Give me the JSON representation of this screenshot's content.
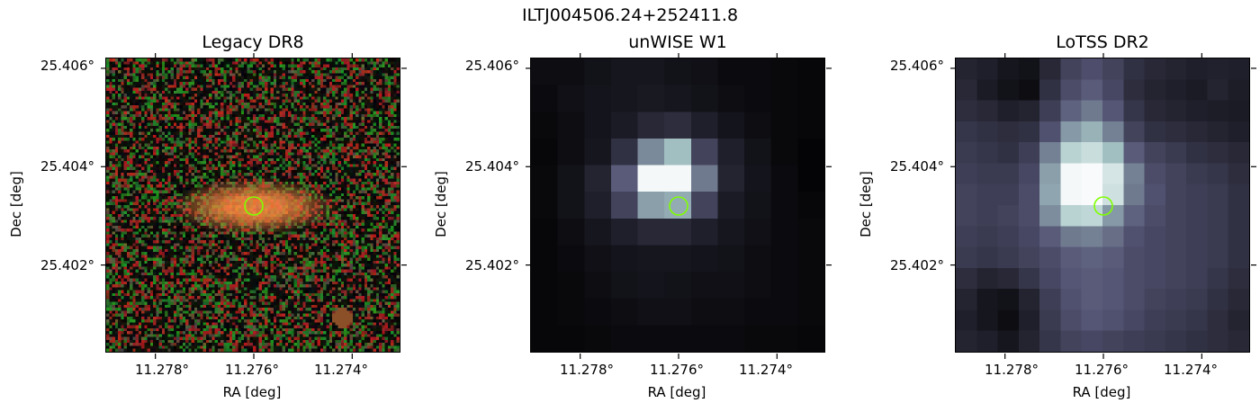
{
  "figure": {
    "title": "ILTJ004506.24+252411.8"
  },
  "chart_data": [
    {
      "type": "image",
      "title": "Legacy DR8",
      "xlabel": "RA [deg]",
      "ylabel": "Dec [deg]",
      "xtick_labels": [
        "11.278°",
        "11.276°",
        "11.274°"
      ],
      "ytick_labels": [
        "25.406°",
        "25.404°",
        "25.402°"
      ],
      "xticks": [
        11.278,
        11.276,
        11.274
      ],
      "yticks": [
        25.406,
        25.404,
        25.402
      ],
      "xlim": [
        11.279,
        11.273
      ],
      "ylim": [
        25.4002,
        25.4062
      ],
      "marker": {
        "ra": 11.276,
        "dec": 25.4032,
        "shape": "circle",
        "color": "#7fff00"
      },
      "colormap": "rgb composite (noisy red/green/black background, orange elliptical galaxy)"
    },
    {
      "type": "image",
      "title": "unWISE W1",
      "xlabel": "RA [deg]",
      "ylabel": "Dec [deg]",
      "xtick_labels": [
        "11.278°",
        "11.276°",
        "11.274°"
      ],
      "ytick_labels": [
        "25.406°",
        "25.404°",
        "25.402°"
      ],
      "xticks": [
        11.278,
        11.276,
        11.274
      ],
      "yticks": [
        25.406,
        25.404,
        25.402
      ],
      "xlim": [
        11.279,
        11.273
      ],
      "ylim": [
        25.4002,
        25.4062
      ],
      "marker": {
        "ra": 11.276,
        "dec": 25.4032,
        "shape": "circle",
        "color": "#7fff00"
      },
      "colormap": "bone (dark to white, coarse pixels, bright compact source)"
    },
    {
      "type": "image",
      "title": "LoTSS DR2",
      "xlabel": "RA [deg]",
      "ylabel": "Dec [deg]",
      "xtick_labels": [
        "11.278°",
        "11.276°",
        "11.274°"
      ],
      "ytick_labels": [
        "25.406°",
        "25.404°",
        "25.402°"
      ],
      "xticks": [
        11.278,
        11.276,
        11.274
      ],
      "yticks": [
        25.406,
        25.404,
        25.402
      ],
      "xlim": [
        11.279,
        11.273
      ],
      "ylim": [
        25.4002,
        25.4062
      ],
      "marker": {
        "ra": 11.276,
        "dec": 25.4032,
        "shape": "circle",
        "color": "#7fff00"
      },
      "colormap": "bone (purple-grey, bright source with extended emission)"
    }
  ]
}
